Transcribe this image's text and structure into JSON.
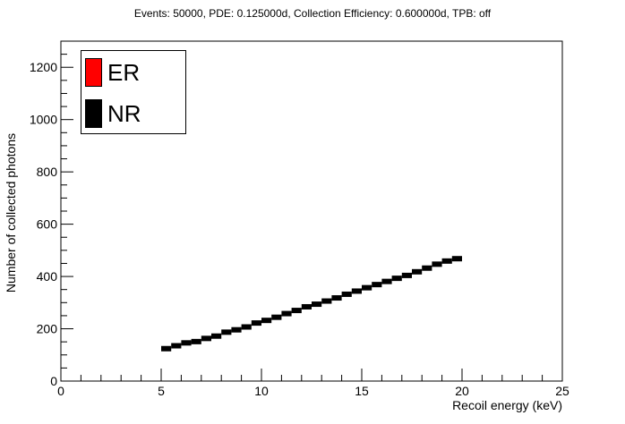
{
  "chart_data": {
    "type": "scatter",
    "title": "Events: 50000, PDE: 0.125000d, Collection Efficiency: 0.600000d, TPB: off",
    "xlabel": "Recoil energy (keV)",
    "ylabel": "Number of collected photons",
    "xlim": [
      0,
      25
    ],
    "ylim": [
      0,
      1300
    ],
    "x_ticks": [
      0,
      5,
      10,
      15,
      20,
      25
    ],
    "y_ticks": [
      0,
      200,
      400,
      600,
      800,
      1000,
      1200
    ],
    "grid": false,
    "legend_position": "top-left",
    "series": [
      {
        "name": "ER",
        "color": "#ff0000",
        "x": [],
        "y": []
      },
      {
        "name": "NR",
        "color": "#000000",
        "x": [
          5.25,
          5.75,
          6.25,
          6.75,
          7.25,
          7.75,
          8.25,
          8.75,
          9.25,
          9.75,
          10.25,
          10.75,
          11.25,
          11.75,
          12.25,
          12.75,
          13.25,
          13.75,
          14.25,
          14.75,
          15.25,
          15.75,
          16.25,
          16.75,
          17.25,
          17.75,
          18.25,
          18.75,
          19.25,
          19.75
        ],
        "y": [
          124,
          135,
          146,
          151,
          163,
          172,
          187,
          196,
          207,
          222,
          232,
          244,
          258,
          270,
          284,
          294,
          306,
          318,
          332,
          344,
          357,
          369,
          381,
          393,
          404,
          418,
          432,
          447,
          459,
          468
        ]
      }
    ]
  }
}
